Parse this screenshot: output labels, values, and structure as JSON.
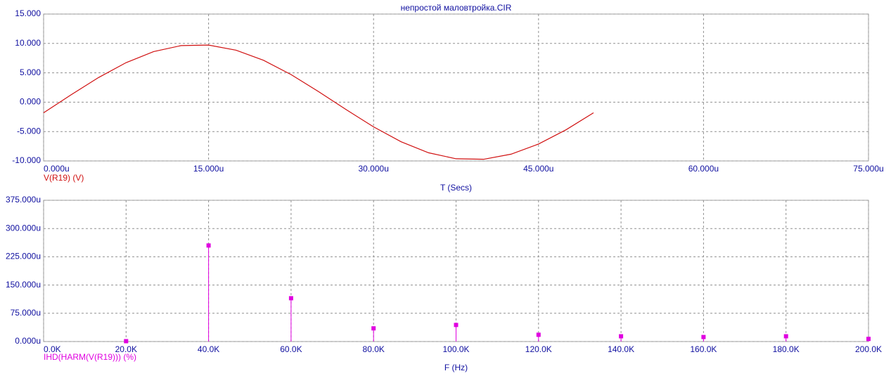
{
  "chart_data": [
    {
      "type": "line",
      "title": "непростой маловтройка.CIR",
      "xlabel": "T (Secs)",
      "x": [
        0,
        2.5,
        5,
        7.5,
        10,
        12.5,
        15,
        17.5,
        20,
        22.5,
        25,
        27.5,
        30,
        32.5,
        35,
        37.5,
        40,
        42.5,
        45,
        47.5,
        50
      ],
      "series": [
        {
          "name": "V(R19) (V)",
          "color": "#d01010",
          "values": [
            -1.8,
            1.26,
            4.2,
            6.73,
            8.61,
            9.63,
            9.72,
            8.85,
            7.13,
            4.7,
            1.8,
            -1.26,
            -4.2,
            -6.73,
            -8.61,
            -9.63,
            -9.72,
            -8.85,
            -7.12,
            -4.7,
            -1.8
          ]
        }
      ],
      "xlim": [
        0,
        75
      ],
      "xticks": [
        {
          "value": 0,
          "label": "0.000u"
        },
        {
          "value": 15,
          "label": "15.000u"
        },
        {
          "value": 30,
          "label": "30.000u"
        },
        {
          "value": 45,
          "label": "45.000u"
        },
        {
          "value": 60,
          "label": "60.000u"
        },
        {
          "value": 75,
          "label": "75.000u"
        }
      ],
      "ylim": [
        -10,
        15
      ],
      "yticks": [
        {
          "value": -10,
          "label": "-10.000"
        },
        {
          "value": -5,
          "label": "-5.000"
        },
        {
          "value": 0,
          "label": "0.000"
        },
        {
          "value": 5,
          "label": "5.000"
        },
        {
          "value": 10,
          "label": "10.000"
        },
        {
          "value": 15,
          "label": "15.000"
        }
      ],
      "grid": true
    },
    {
      "type": "stem",
      "xlabel": "F (Hz)",
      "x": [
        20,
        40,
        60,
        80,
        100,
        120,
        140,
        160,
        180,
        200
      ],
      "series": [
        {
          "name": "IHD(HARM(V(R19))) (%)",
          "color": "#e000e0",
          "values": [
            1,
            255,
            115,
            35,
            44,
            18,
            14,
            12,
            14,
            7
          ]
        }
      ],
      "xlim": [
        0,
        200
      ],
      "xticks": [
        {
          "value": 0,
          "label": "0.0K"
        },
        {
          "value": 20,
          "label": "20.0K"
        },
        {
          "value": 40,
          "label": "40.0K"
        },
        {
          "value": 60,
          "label": "60.0K"
        },
        {
          "value": 80,
          "label": "80.0K"
        },
        {
          "value": 100,
          "label": "100.0K"
        },
        {
          "value": 120,
          "label": "120.0K"
        },
        {
          "value": 140,
          "label": "140.0K"
        },
        {
          "value": 160,
          "label": "160.0K"
        },
        {
          "value": 180,
          "label": "180.0K"
        },
        {
          "value": 200,
          "label": "200.0K"
        }
      ],
      "ylim": [
        0,
        375
      ],
      "yticks": [
        {
          "value": 0,
          "label": "0.000u"
        },
        {
          "value": 75,
          "label": "75.000u"
        },
        {
          "value": 150,
          "label": "150.000u"
        },
        {
          "value": 225,
          "label": "225.000u"
        },
        {
          "value": 300,
          "label": "300.000u"
        },
        {
          "value": 375,
          "label": "375.000u"
        }
      ],
      "grid": true
    }
  ]
}
